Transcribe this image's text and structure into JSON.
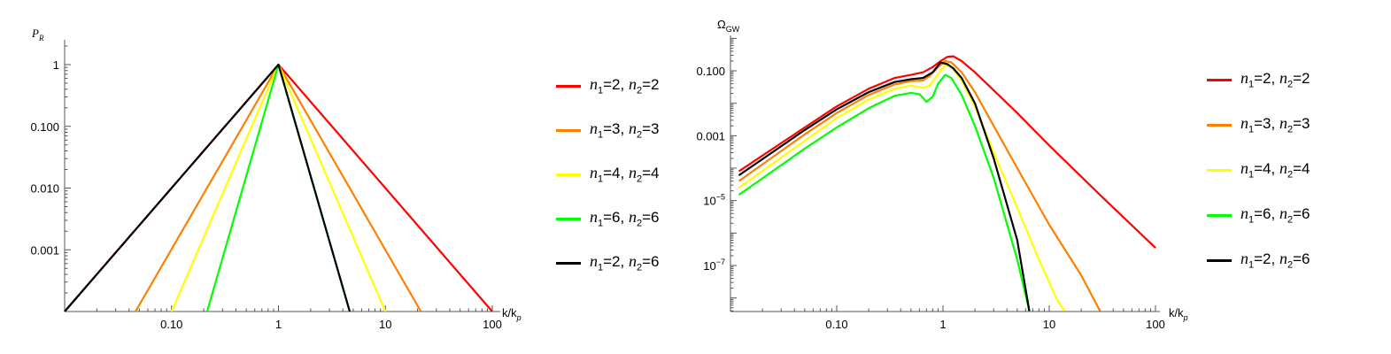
{
  "chart_data": [
    {
      "type": "line",
      "title": "",
      "ylabel": "P_R",
      "xlabel": "k/k_p",
      "x_scale": "log",
      "y_scale": "log",
      "xlim": [
        0.01,
        120
      ],
      "ylim": [
        1e-05,
        1.6
      ],
      "x_ticks": [
        {
          "value": 0.1,
          "label": "0.10"
        },
        {
          "value": 1,
          "label": "1"
        },
        {
          "value": 10,
          "label": "10"
        },
        {
          "value": 100,
          "label": "100"
        }
      ],
      "y_ticks": [
        {
          "value": 1,
          "label": "1"
        },
        {
          "value": 0.1,
          "label": "0.100"
        },
        {
          "value": 0.01,
          "label": "0.010"
        },
        {
          "value": 0.001,
          "label": "0.001"
        }
      ],
      "grid": false,
      "legend_position": "right",
      "series": [
        {
          "name": "n1=2, n2=2",
          "color": "#ff0000",
          "x": [
            0.01,
            1,
            100
          ],
          "y": [
            0.0001,
            1,
            0.0001
          ]
        },
        {
          "name": "n1=3, n2=3",
          "color": "#ff7f00",
          "x": [
            0.046,
            1,
            21.5
          ],
          "y": [
            0.0001,
            1,
            0.0001
          ]
        },
        {
          "name": "n1=4, n2=4",
          "color": "#ffff00",
          "x": [
            0.1,
            1,
            10
          ],
          "y": [
            0.0001,
            1,
            0.0001
          ]
        },
        {
          "name": "n1=6, n2=6",
          "color": "#00ff00",
          "x": [
            0.215,
            1,
            4.64
          ],
          "y": [
            0.0001,
            1,
            0.0001
          ]
        },
        {
          "name": "n1=2, n2=6",
          "color": "#000000",
          "x": [
            0.01,
            1,
            4.64
          ],
          "y": [
            0.0001,
            1,
            0.0001
          ]
        }
      ]
    },
    {
      "type": "line",
      "title": "",
      "ylabel": "Ω_GW",
      "xlabel": "k/k_p",
      "x_scale": "log",
      "y_scale": "log",
      "xlim": [
        0.01,
        120
      ],
      "ylim": [
        5e-09,
        0.6
      ],
      "x_ticks": [
        {
          "value": 0.1,
          "label": "0.10"
        },
        {
          "value": 1,
          "label": "1"
        },
        {
          "value": 10,
          "label": "10"
        },
        {
          "value": 100,
          "label": "100"
        }
      ],
      "y_ticks": [
        {
          "value": 0.1,
          "label": "0.100"
        },
        {
          "value": 0.001,
          "label": "0.001"
        },
        {
          "value": 1e-05,
          "label": "10^-5"
        },
        {
          "value": 1e-07,
          "label": "10^-7"
        }
      ],
      "grid": false,
      "legend_position": "right",
      "series": [
        {
          "name": "n1=2, n2=2",
          "color": "#ff0000",
          "x": [
            0.012,
            0.05,
            0.1,
            0.2,
            0.35,
            0.5,
            0.65,
            0.8,
            0.95,
            1.1,
            1.25,
            1.5,
            2,
            3,
            5,
            10,
            30,
            100
          ],
          "y": [
            8e-05,
            0.0018,
            0.008,
            0.028,
            0.06,
            0.075,
            0.09,
            0.13,
            0.2,
            0.27,
            0.28,
            0.2,
            0.09,
            0.025,
            0.005,
            0.0005,
            1.5e-05,
            3.5e-07
          ]
        },
        {
          "name": "n1=3, n2=3",
          "color": "#ff7f00",
          "x": [
            0.012,
            0.05,
            0.1,
            0.2,
            0.35,
            0.5,
            0.65,
            0.75,
            0.9,
            1.05,
            1.2,
            1.5,
            2,
            3,
            5,
            10,
            20,
            30
          ],
          "y": [
            4e-05,
            0.0011,
            0.005,
            0.018,
            0.038,
            0.048,
            0.05,
            0.07,
            0.13,
            0.2,
            0.18,
            0.09,
            0.022,
            0.002,
            0.0001,
            1.8e-06,
            5e-08,
            4e-09
          ]
        },
        {
          "name": "n1=4, n2=4",
          "color": "#ffff00",
          "x": [
            0.012,
            0.05,
            0.1,
            0.2,
            0.35,
            0.5,
            0.65,
            0.75,
            0.9,
            1.05,
            1.2,
            1.5,
            2,
            3,
            5,
            8,
            12,
            14
          ],
          "y": [
            2.5e-05,
            0.0007,
            0.0035,
            0.013,
            0.028,
            0.035,
            0.03,
            0.035,
            0.08,
            0.15,
            0.13,
            0.05,
            0.008,
            0.0003,
            6e-06,
            1.5e-07,
            8e-09,
            4e-09
          ]
        },
        {
          "name": "n1=6, n2=6",
          "color": "#00ff00",
          "x": [
            0.012,
            0.05,
            0.1,
            0.2,
            0.35,
            0.5,
            0.6,
            0.7,
            0.8,
            0.9,
            1.05,
            1.2,
            1.5,
            2,
            3,
            5,
            6.5
          ],
          "y": [
            1.5e-05,
            0.0004,
            0.0018,
            0.007,
            0.017,
            0.021,
            0.019,
            0.011,
            0.016,
            0.04,
            0.075,
            0.06,
            0.018,
            0.002,
            5e-05,
            1.5e-07,
            4e-09
          ]
        },
        {
          "name": "n1=2, n2=6",
          "color": "#000000",
          "x": [
            0.012,
            0.05,
            0.1,
            0.2,
            0.35,
            0.5,
            0.65,
            0.8,
            0.95,
            1.1,
            1.25,
            1.5,
            2,
            3,
            5,
            6.5
          ],
          "y": [
            6e-05,
            0.0015,
            0.0065,
            0.022,
            0.045,
            0.055,
            0.06,
            0.09,
            0.18,
            0.16,
            0.12,
            0.06,
            0.01,
            0.0002,
            6e-07,
            4e-09
          ]
        }
      ]
    }
  ],
  "legends": [
    [
      {
        "n1": "2",
        "n2": "2",
        "color": "#ff0000"
      },
      {
        "n1": "3",
        "n2": "3",
        "color": "#ff7f00"
      },
      {
        "n1": "4",
        "n2": "4",
        "color": "#ffff00"
      },
      {
        "n1": "6",
        "n2": "6",
        "color": "#00ff00"
      },
      {
        "n1": "2",
        "n2": "6",
        "color": "#000000"
      }
    ],
    [
      {
        "n1": "2",
        "n2": "2",
        "color": "#ff0000"
      },
      {
        "n1": "3",
        "n2": "3",
        "color": "#ff7f00"
      },
      {
        "n1": "4",
        "n2": "4",
        "color": "#ffff00"
      },
      {
        "n1": "6",
        "n2": "6",
        "color": "#00ff00"
      },
      {
        "n1": "2",
        "n2": "6",
        "color": "#000000"
      }
    ]
  ],
  "legend_text": {
    "n1_symbol": "n",
    "n1_sub": "1",
    "n2_symbol": "n",
    "n2_sub": "2",
    "eq": "=",
    "sep": ", "
  }
}
